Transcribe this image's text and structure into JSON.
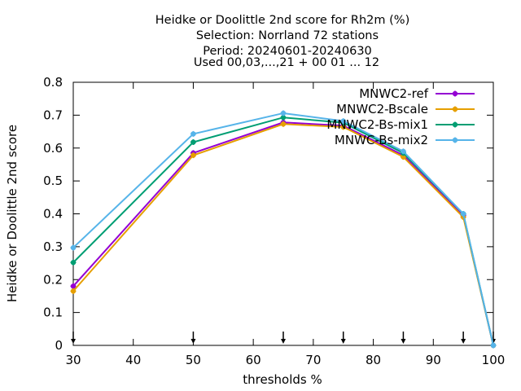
{
  "chart_data": {
    "type": "line",
    "title_lines": [
      "Heidke or Doolittle 2nd score  for Rh2m (%)",
      "Selection: Norrland     72 stations",
      "Period: 20240601-20240630",
      "Used 00,03,...,21 + 00 01 ... 12"
    ],
    "xlabel": "thresholds %",
    "ylabel": "Heidke or Doolittle 2nd score",
    "xlim": [
      30,
      100
    ],
    "ylim": [
      0,
      0.8
    ],
    "xticks": [
      30,
      40,
      50,
      60,
      70,
      80,
      90,
      100
    ],
    "yticks": [
      0,
      0.1,
      0.2,
      0.3,
      0.4,
      0.5,
      0.6,
      0.7,
      0.8
    ],
    "grid": false,
    "legend_position": "top-right",
    "threshold_markers_x": [
      30,
      50,
      65,
      75,
      85,
      95,
      100
    ],
    "x": [
      30,
      50,
      65,
      75,
      85,
      95,
      100
    ],
    "series": [
      {
        "name": "MNWC2-ref",
        "color": "#9400d3",
        "values": [
          0.18,
          0.585,
          0.678,
          0.668,
          0.578,
          0.395,
          0.0
        ]
      },
      {
        "name": "MNWC2-Bscale",
        "color": "#e69f00",
        "values": [
          0.165,
          0.578,
          0.673,
          0.664,
          0.573,
          0.39,
          0.0
        ]
      },
      {
        "name": "MNWC2-Bs-mix1",
        "color": "#009e73",
        "values": [
          0.252,
          0.618,
          0.693,
          0.677,
          0.585,
          0.4,
          0.0
        ]
      },
      {
        "name": "MNWC-Bs-mix2",
        "color": "#56b4e9",
        "values": [
          0.297,
          0.643,
          0.706,
          0.682,
          0.59,
          0.4,
          0.0
        ]
      }
    ]
  }
}
